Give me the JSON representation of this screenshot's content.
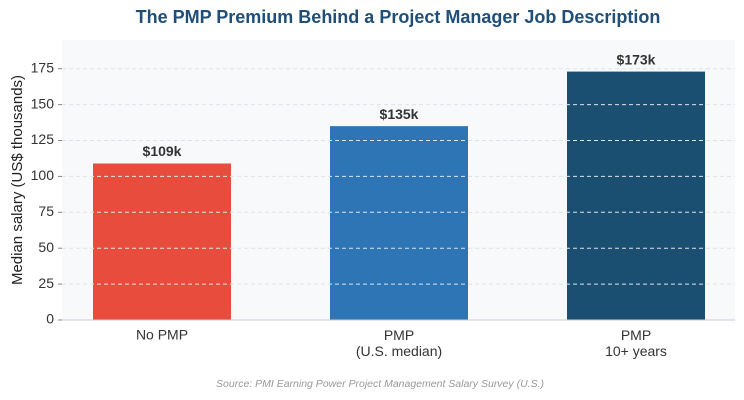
{
  "chart_data": {
    "type": "bar",
    "title": "The PMP Premium Behind a Project Manager Job Description",
    "y_label": "Median salary (US$ thousands)",
    "categories": [
      "No PMP",
      "PMP\n(U.S. median)",
      "PMP\n10+ years"
    ],
    "values": [
      109,
      135,
      173
    ],
    "value_labels": [
      "$109k",
      "$135k",
      "$173k"
    ],
    "colors": [
      "#e74c3c",
      "#2e75b6",
      "#1b4f72"
    ],
    "ylim": [
      0,
      195
    ],
    "yticks": [
      0,
      25,
      50,
      75,
      100,
      125,
      150,
      175
    ],
    "grid": true,
    "source": "Source: PMI Earning Power Project Management Salary Survey (U.S.)"
  }
}
